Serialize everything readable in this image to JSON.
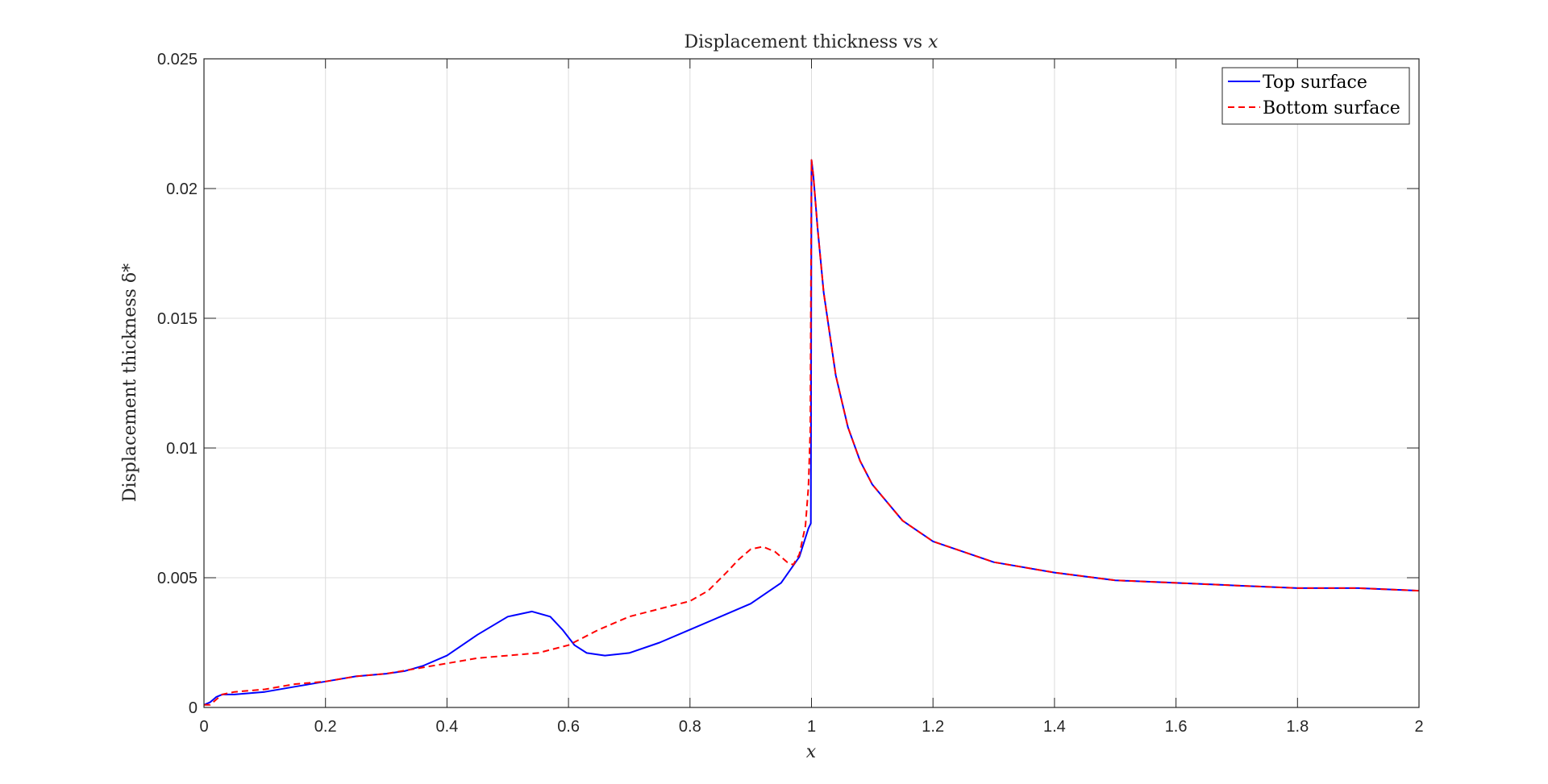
{
  "chart_data": {
    "type": "line",
    "title": "Displacement thickness vs x",
    "title_prefix": "Displacement thickness vs ",
    "title_var": "x",
    "xlabel": "x",
    "ylabel": "Displacement thickness δ*",
    "xlim": [
      0,
      2
    ],
    "ylim": [
      0,
      0.025
    ],
    "xticks": [
      0,
      0.2,
      0.4,
      0.6,
      0.8,
      1,
      1.2,
      1.4,
      1.6,
      1.8,
      2
    ],
    "xtick_labels": [
      "0",
      "0.2",
      "0.4",
      "0.6",
      "0.8",
      "1",
      "1.2",
      "1.4",
      "1.6",
      "1.8",
      "2"
    ],
    "yticks": [
      0,
      0.005,
      0.01,
      0.015,
      0.02,
      0.025
    ],
    "ytick_labels": [
      "0",
      "0.005",
      "0.01",
      "0.015",
      "0.02",
      "0.025"
    ],
    "grid": true,
    "legend_position": "top-right",
    "series": [
      {
        "name": "Top surface",
        "color": "#0000ff",
        "style": "solid",
        "x": [
          0,
          0.01,
          0.02,
          0.03,
          0.05,
          0.1,
          0.15,
          0.2,
          0.25,
          0.3,
          0.33,
          0.36,
          0.4,
          0.45,
          0.5,
          0.54,
          0.57,
          0.59,
          0.61,
          0.63,
          0.66,
          0.7,
          0.75,
          0.8,
          0.85,
          0.9,
          0.95,
          0.98,
          0.995,
          0.999,
          1.0,
          1.003,
          1.01,
          1.02,
          1.04,
          1.06,
          1.08,
          1.1,
          1.15,
          1.2,
          1.3,
          1.4,
          1.5,
          1.6,
          1.7,
          1.8,
          1.9,
          2.0
        ],
        "y": [
          0.0001,
          0.0002,
          0.0004,
          0.0005,
          0.0005,
          0.0006,
          0.0008,
          0.001,
          0.0012,
          0.0013,
          0.0014,
          0.0016,
          0.002,
          0.0028,
          0.0035,
          0.0037,
          0.0035,
          0.003,
          0.0024,
          0.0021,
          0.002,
          0.0021,
          0.0025,
          0.003,
          0.0035,
          0.004,
          0.0048,
          0.0058,
          0.0069,
          0.0071,
          0.0211,
          0.0205,
          0.0185,
          0.016,
          0.0128,
          0.0108,
          0.0095,
          0.0086,
          0.0072,
          0.0064,
          0.0056,
          0.0052,
          0.0049,
          0.0048,
          0.0047,
          0.0046,
          0.0046,
          0.0045
        ]
      },
      {
        "name": "Bottom surface",
        "color": "#ff0000",
        "style": "dashed",
        "x": [
          0,
          0.01,
          0.02,
          0.03,
          0.05,
          0.1,
          0.15,
          0.2,
          0.25,
          0.3,
          0.35,
          0.4,
          0.45,
          0.5,
          0.55,
          0.6,
          0.65,
          0.7,
          0.75,
          0.8,
          0.83,
          0.86,
          0.88,
          0.9,
          0.92,
          0.94,
          0.96,
          0.97,
          0.98,
          0.99,
          0.995,
          0.998,
          1.0,
          1.003,
          1.01,
          1.02,
          1.04,
          1.06,
          1.08,
          1.1,
          1.15,
          1.2,
          1.3,
          1.4,
          1.5,
          1.6,
          1.7,
          1.8,
          1.9,
          2.0
        ],
        "y": [
          0.0001,
          0.0001,
          0.0003,
          0.0005,
          0.0006,
          0.0007,
          0.0009,
          0.001,
          0.0012,
          0.0013,
          0.0015,
          0.0017,
          0.0019,
          0.002,
          0.0021,
          0.0024,
          0.003,
          0.0035,
          0.0038,
          0.0041,
          0.0045,
          0.0052,
          0.0057,
          0.0061,
          0.0062,
          0.006,
          0.0056,
          0.0055,
          0.0059,
          0.007,
          0.0085,
          0.0107,
          0.0211,
          0.0205,
          0.0185,
          0.016,
          0.0128,
          0.0108,
          0.0095,
          0.0086,
          0.0072,
          0.0064,
          0.0056,
          0.0052,
          0.0049,
          0.0048,
          0.0047,
          0.0046,
          0.0046,
          0.0045
        ]
      }
    ]
  }
}
